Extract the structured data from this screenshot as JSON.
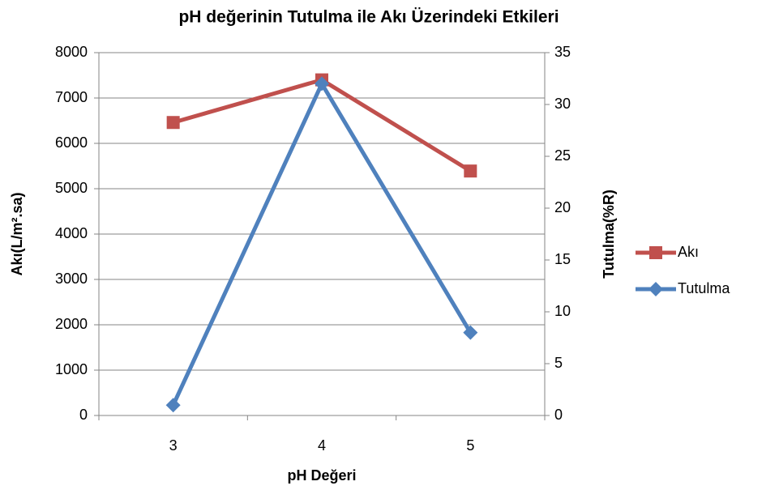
{
  "chart_data": {
    "type": "line",
    "title": "pH değerinin Tutulma ile Akı Üzerindeki Etkileri",
    "x_label": "pH Değeri",
    "y_label": "Akı(L/m².sa)",
    "y2_label": "Tutulma(%R)",
    "categories": [
      "3",
      "4",
      "5"
    ],
    "series": [
      {
        "name": "Akı",
        "color": "#c0504d",
        "marker": "square",
        "values": [
          6460,
          7400,
          5390
        ]
      },
      {
        "name": "Tutulma",
        "color": "#4f81bd",
        "marker": "diamond",
        "axis": "y2",
        "values": [
          1,
          32,
          8
        ]
      }
    ],
    "ylim": [
      0,
      8000
    ],
    "yticks": [
      0,
      1000,
      2000,
      3000,
      4000,
      5000,
      6000,
      7000,
      8000
    ],
    "y2lim": [
      0,
      35
    ],
    "y2ticks": [
      0,
      5,
      10,
      15,
      20,
      25,
      30,
      35
    ],
    "grid": true,
    "legend": "right"
  }
}
